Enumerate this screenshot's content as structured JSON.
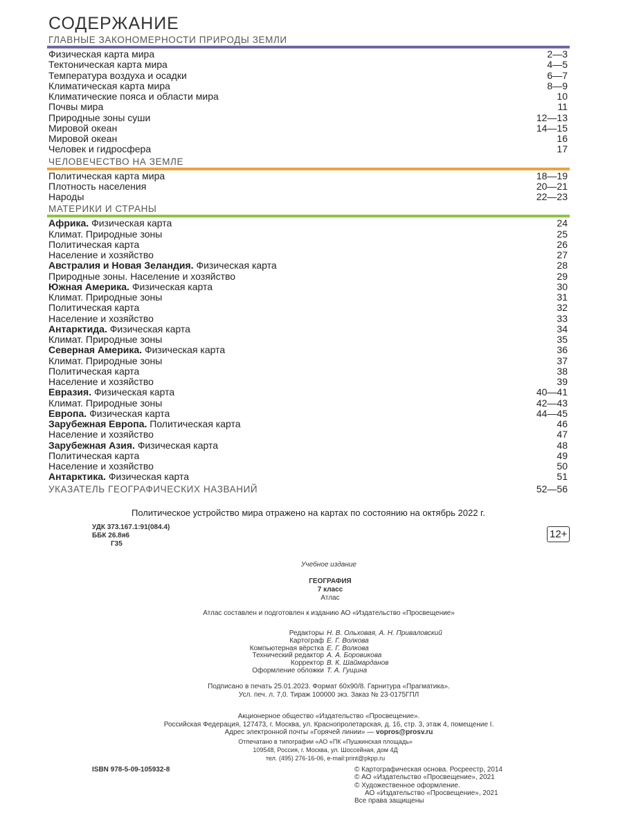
{
  "contents": {
    "title": "СОДЕРЖАНИЕ",
    "sections": [
      {
        "heading": "ГЛАВНЫЕ ЗАКОНОМЕРНОСТИ ПРИРОДЫ ЗЕМЛИ",
        "color": "#6c6aa8",
        "entries": [
          {
            "text": "Физическая карта мира",
            "pages": "2—3"
          },
          {
            "text": "Тектоническая карта мира",
            "pages": "4—5"
          },
          {
            "text": "Температура воздуха и осадки",
            "pages": "6—7"
          },
          {
            "text": "Климатическая карта мира",
            "pages": "8—9"
          },
          {
            "text": "Климатические пояса и области мира",
            "pages": "10"
          },
          {
            "text": "Почвы мира",
            "pages": "11"
          },
          {
            "text": "Природные зоны суши",
            "pages": "12—13"
          },
          {
            "text": "Мировой океан",
            "pages": "14—15"
          },
          {
            "text": "Мировой океан",
            "pages": "16"
          },
          {
            "text": "Человек и гидросфера",
            "pages": "17"
          }
        ]
      },
      {
        "heading": "ЧЕЛОВЕЧЕСТВО НА ЗЕМЛЕ",
        "color": "#f0a23a",
        "entries": [
          {
            "text": "Политическая карта мира",
            "pages": "18—19"
          },
          {
            "text": "Плотность населения",
            "pages": "20—21"
          },
          {
            "text": "Народы",
            "pages": "22—23"
          }
        ]
      },
      {
        "heading": "МАТЕРИКИ И СТРАНЫ",
        "color": "#8cc63f",
        "entries": [
          {
            "bold": "Африка.",
            "text": "Физическая карта",
            "pages": "24"
          },
          {
            "text": "Климат. Природные зоны",
            "pages": "25"
          },
          {
            "text": "Политическая карта",
            "pages": "26"
          },
          {
            "text": "Население и хозяйство",
            "pages": "27"
          },
          {
            "bold": "Австралия и Новая Зеландия.",
            "text": "Физическая карта",
            "pages": "28"
          },
          {
            "text": "Природные зоны. Население и хозяйство",
            "pages": "29"
          },
          {
            "bold": "Южная Америка.",
            "text": "Физическая карта",
            "pages": "30"
          },
          {
            "text": "Климат. Природные зоны",
            "pages": "31"
          },
          {
            "text": "Политическая карта",
            "pages": "32"
          },
          {
            "text": "Население и хозяйство",
            "pages": "33"
          },
          {
            "bold": "Антарктида.",
            "text": "Физическая карта",
            "pages": "34"
          },
          {
            "text": "Климат. Природные зоны",
            "pages": "35"
          },
          {
            "bold": "Северная Америка.",
            "text": "Физическая карта",
            "pages": "36"
          },
          {
            "text": "Климат. Природные зоны",
            "pages": "37"
          },
          {
            "text": "Политическая карта",
            "pages": "38"
          },
          {
            "text": "Население и хозяйство",
            "pages": "39"
          },
          {
            "bold": "Евразия.",
            "text": "Физическая карта",
            "pages": "40—41"
          },
          {
            "text": "Климат. Природные зоны",
            "pages": "42—43"
          },
          {
            "bold": "Европа.",
            "text": "Физическая карта",
            "pages": "44—45"
          },
          {
            "bold": "Зарубежная Европа.",
            "text": "Политическая карта",
            "pages": "46"
          },
          {
            "text": "Население и хозяйство",
            "pages": "47"
          },
          {
            "bold": "Зарубежная Азия.",
            "text": "Физическая карта",
            "pages": "48"
          },
          {
            "text": "Политическая карта",
            "pages": "49"
          },
          {
            "text": "Население и хозяйство",
            "pages": "50"
          },
          {
            "bold": "Антарктика.",
            "text": "Физическая карта",
            "pages": "51"
          }
        ]
      }
    ],
    "index": {
      "heading": "УКАЗАТЕЛЬ ГЕОГРАФИЧЕСКИХ НАЗВАНИЙ",
      "pages": "52—56"
    }
  },
  "note": "Политическое устройство мира отражено на картах по состоянию на октябрь 2022 г.",
  "classification": [
    "УДК 373.167.1:91(084.4)",
    "ББК 26.8я6",
    "Г35"
  ],
  "age_rating": "12+",
  "imprint": {
    "edition_type": "Учебное издание",
    "book_title": "ГЕОГРАФИЯ",
    "grade": "7 класс",
    "kind": "Атлас",
    "prepared": "Атлас составлен и подготовлен к изданию АО «Издательство «Просвещение»",
    "credits": [
      {
        "role": "Редакторы",
        "name": "Н. В. Ольховая, А. Н. Привaловский"
      },
      {
        "role": "Картограф",
        "name": "Е. Г. Волкова"
      },
      {
        "role": "Компьютерная вёрстка",
        "name": "Е. Г. Волкова"
      },
      {
        "role": "Технический редактор",
        "name": "А. А. Боровикова"
      },
      {
        "role": "Корректор",
        "name": "В. К. Шаймарданов"
      },
      {
        "role": "Оформление обложки",
        "name": "Т. А. Гущина"
      }
    ],
    "print_details": [
      "Подписано в печать 25.01.2023. Формат 60х90/8. Гарнитура «Прагматика».",
      "Усл. печ. л. 7,0. Тираж 100000 экз. Заказ № 23-0175ГПЛ"
    ],
    "publisher": [
      "Акционерное общество «Издательство «Просвещение».",
      "Российская Федерация, 127473, г. Москва, ул. Краснопролетарская, д. 16, стр. 3, этаж 4, помещение I."
    ],
    "hotline": {
      "text": "Адрес электронной почты «Горячей линии» —",
      "email": "vopros@prosv.ru"
    },
    "printer": [
      "Отпечатано в типографии «АО «ПК «Пушкинская площадь»",
      "109548, Россия, г. Москва, ул. Шоссейная, дом 4Д",
      "тел. (495) 276-16-06, e-mail:print@pkpp.ru"
    ],
    "isbn": "ISBN 978-5-09-105932-8",
    "copyrights": [
      "© Картографическая основа. Росреестр, 2014",
      "© АО «Издательство «Просвещение», 2021",
      "© Художественное оформление.",
      "АО «Издательство «Просвещение», 2021",
      "Все права защищены"
    ]
  }
}
